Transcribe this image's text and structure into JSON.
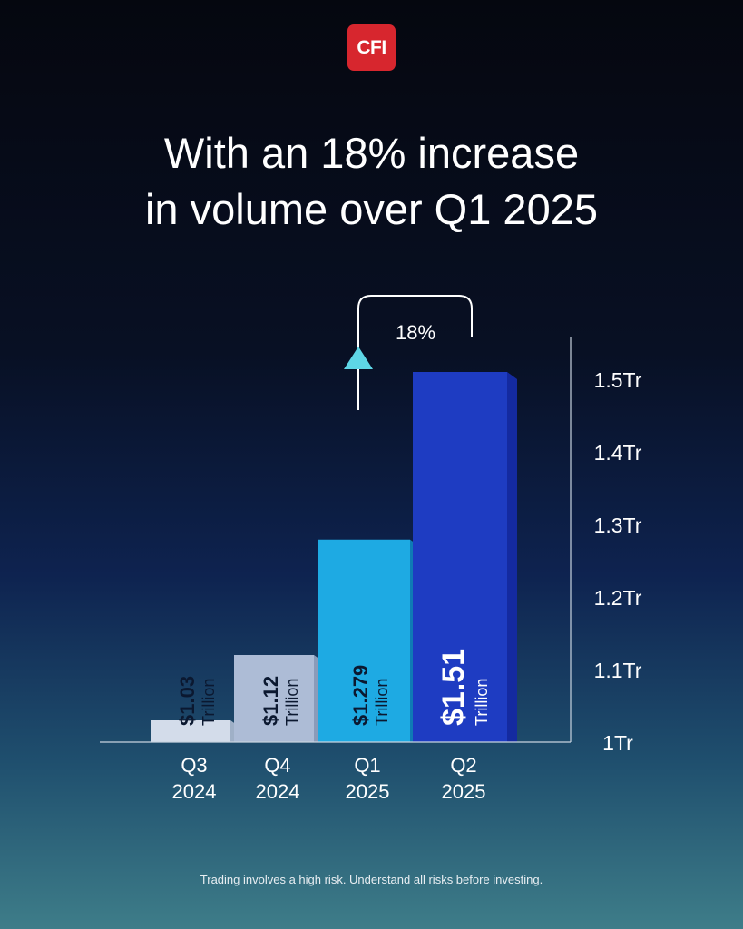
{
  "brand": {
    "logo_text": "CFI",
    "logo_color": "#d7262e"
  },
  "headline": {
    "line1": "With an 18% increase",
    "line2": "in volume over Q1 2025"
  },
  "chart_data": {
    "type": "bar",
    "categories": [
      {
        "quarter": "Q3",
        "year": "2024"
      },
      {
        "quarter": "Q4",
        "year": "2024"
      },
      {
        "quarter": "Q1",
        "year": "2025"
      },
      {
        "quarter": "Q2",
        "year": "2025"
      }
    ],
    "values": [
      1.03,
      1.12,
      1.279,
      1.51
    ],
    "value_labels": [
      "$1.03",
      "$1.12",
      "$1.279",
      "$1.51"
    ],
    "unit_label": "Trillion",
    "y_ticks": [
      "1Tr",
      "1.1Tr",
      "1.2Tr",
      "1.3Tr",
      "1.4Tr",
      "1.5Tr"
    ],
    "ylim": [
      1.0,
      1.5
    ],
    "bar_colors": [
      "#d3dcea",
      "#adbcd6",
      "#1eaae3",
      "#1e3cc2"
    ],
    "annotation": {
      "text": "18%",
      "from_category": "Q1",
      "to_category": "Q2"
    },
    "grid": false,
    "axis_position": "right"
  },
  "disclaimer": "Trading involves a high risk. Understand all risks before investing."
}
